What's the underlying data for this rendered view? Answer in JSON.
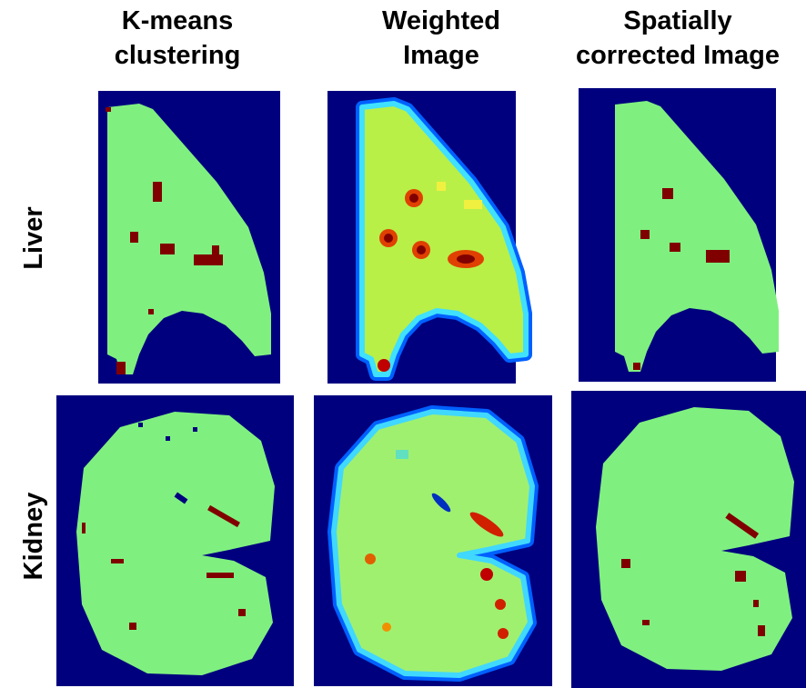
{
  "columns": [
    {
      "lines": [
        "K-means",
        "clustering"
      ]
    },
    {
      "lines": [
        "Weighted",
        "Image"
      ]
    },
    {
      "lines": [
        "Spatially",
        "corrected Image"
      ]
    }
  ],
  "rows": [
    "Liver",
    "Kidney"
  ]
}
